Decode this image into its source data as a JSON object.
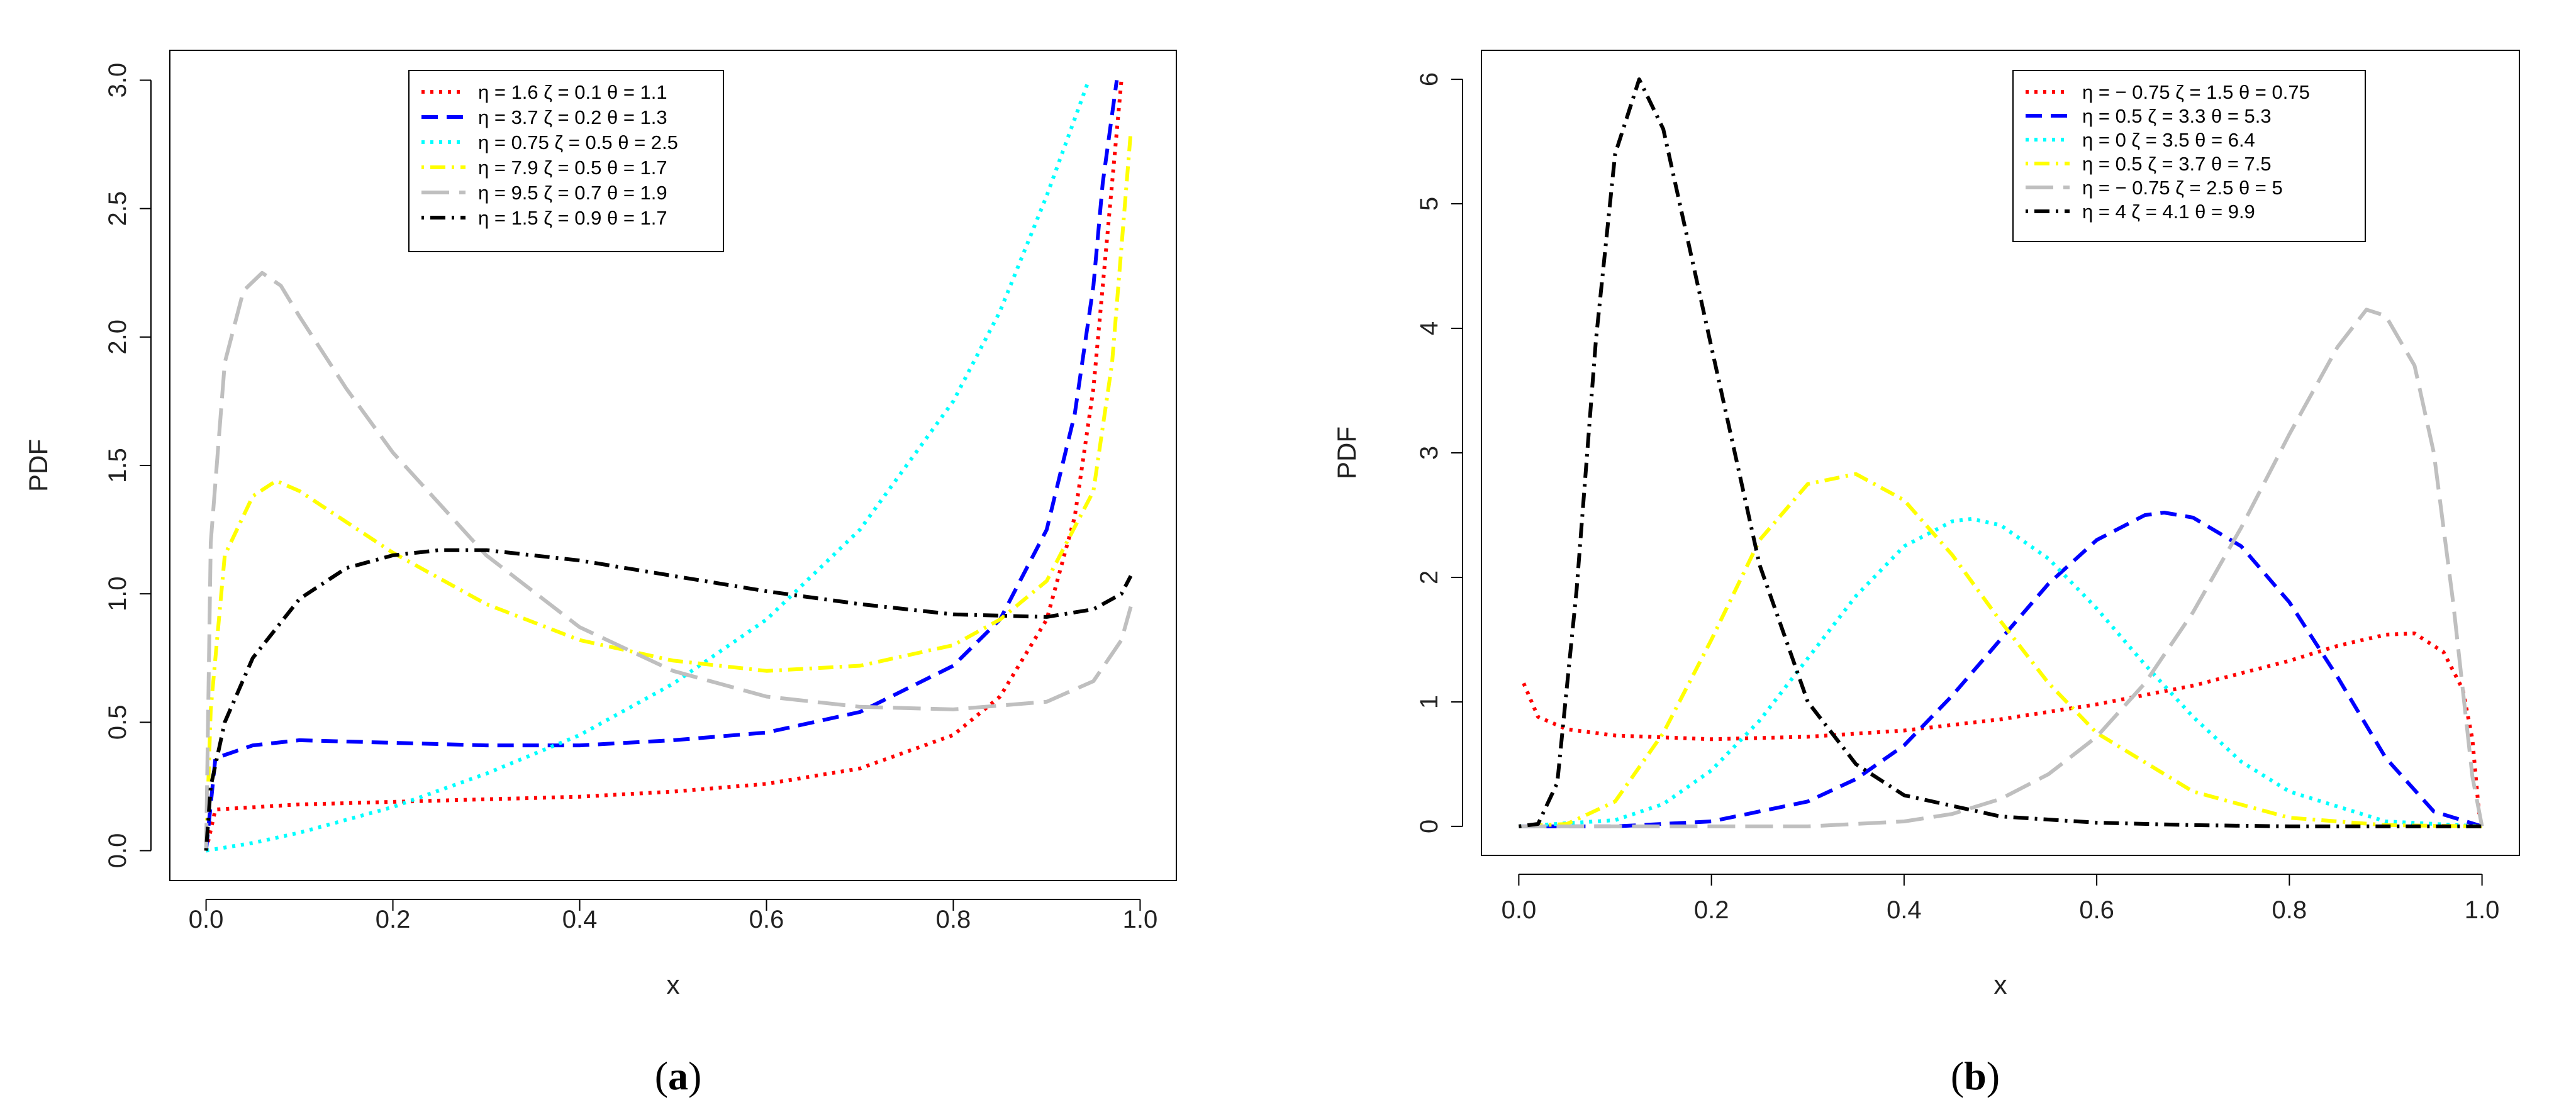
{
  "chart_data": [
    {
      "type": "line",
      "panel_label": "a",
      "xlabel": "x",
      "ylabel": "PDF",
      "xlim": [
        0,
        1
      ],
      "ylim": [
        0,
        3.0
      ],
      "xticks": [
        "0.0",
        "0.2",
        "0.4",
        "0.6",
        "0.8",
        "1.0"
      ],
      "yticks": [
        "0.0",
        "0.5",
        "1.0",
        "1.5",
        "2.0",
        "2.5",
        "3.0"
      ],
      "legend_position": "top-center",
      "series": [
        {
          "name": "η = 1.6  ζ = 0.1  θ = 1.1",
          "color": "#ff0000",
          "dash": "dotted",
          "x": [
            0.0,
            0.01,
            0.1,
            0.2,
            0.3,
            0.4,
            0.5,
            0.6,
            0.7,
            0.8,
            0.85,
            0.9,
            0.93,
            0.95,
            0.97,
            0.98
          ],
          "y": [
            0.0,
            0.16,
            0.18,
            0.19,
            0.2,
            0.21,
            0.23,
            0.26,
            0.32,
            0.45,
            0.6,
            0.9,
            1.3,
            1.8,
            2.6,
            3.0
          ]
        },
        {
          "name": "η = 3.7  ζ = 0.2  θ = 1.3",
          "color": "#0000ff",
          "dash": "dashed",
          "x": [
            0.0,
            0.01,
            0.05,
            0.1,
            0.2,
            0.3,
            0.4,
            0.5,
            0.6,
            0.7,
            0.8,
            0.85,
            0.9,
            0.93,
            0.95,
            0.96,
            0.975
          ],
          "y": [
            0.0,
            0.36,
            0.41,
            0.43,
            0.42,
            0.41,
            0.41,
            0.43,
            0.46,
            0.54,
            0.72,
            0.9,
            1.25,
            1.7,
            2.2,
            2.6,
            3.0
          ]
        },
        {
          "name": "η = 0.75  ζ = 0.5  θ = 2.5",
          "color": "#00ffff",
          "dash": "dotted",
          "x": [
            0.0,
            0.05,
            0.1,
            0.2,
            0.3,
            0.4,
            0.5,
            0.6,
            0.7,
            0.8,
            0.85,
            0.9,
            0.93,
            0.945
          ],
          "y": [
            0.0,
            0.03,
            0.07,
            0.17,
            0.3,
            0.45,
            0.65,
            0.9,
            1.25,
            1.75,
            2.1,
            2.55,
            2.85,
            3.0
          ]
        },
        {
          "name": "η = 7.9  ζ = 0.5  θ = 1.7",
          "color": "#ffff00",
          "dash": "dashdot",
          "x": [
            0.0,
            0.005,
            0.02,
            0.05,
            0.075,
            0.1,
            0.2,
            0.3,
            0.4,
            0.5,
            0.6,
            0.7,
            0.8,
            0.85,
            0.9,
            0.95,
            0.97,
            0.99
          ],
          "y": [
            0.0,
            0.55,
            1.15,
            1.38,
            1.44,
            1.4,
            1.16,
            0.96,
            0.82,
            0.74,
            0.7,
            0.72,
            0.8,
            0.9,
            1.05,
            1.4,
            1.9,
            2.8
          ]
        },
        {
          "name": "η = 9.5  ζ = 0.7  θ = 1.9",
          "color": "#bfbfbf",
          "dash": "longdash",
          "x": [
            0.0,
            0.005,
            0.02,
            0.04,
            0.06,
            0.08,
            0.1,
            0.15,
            0.2,
            0.3,
            0.4,
            0.5,
            0.6,
            0.7,
            0.8,
            0.9,
            0.95,
            0.98,
            0.99
          ],
          "y": [
            0.0,
            1.2,
            1.9,
            2.18,
            2.25,
            2.2,
            2.08,
            1.8,
            1.55,
            1.15,
            0.87,
            0.7,
            0.6,
            0.56,
            0.55,
            0.58,
            0.66,
            0.82,
            0.95
          ]
        },
        {
          "name": "η = 1.5  ζ = 0.9  θ = 1.7",
          "color": "#000000",
          "dash": "dashdot",
          "x": [
            0.0,
            0.005,
            0.02,
            0.05,
            0.1,
            0.15,
            0.2,
            0.25,
            0.3,
            0.4,
            0.5,
            0.6,
            0.7,
            0.8,
            0.9,
            0.95,
            0.98,
            0.99
          ],
          "y": [
            0.0,
            0.25,
            0.5,
            0.75,
            0.98,
            1.1,
            1.15,
            1.17,
            1.17,
            1.13,
            1.07,
            1.01,
            0.96,
            0.92,
            0.91,
            0.94,
            1.0,
            1.07
          ]
        }
      ]
    },
    {
      "type": "line",
      "panel_label": "b",
      "xlabel": "x",
      "ylabel": "PDF",
      "xlim": [
        0,
        1
      ],
      "ylim": [
        0,
        6
      ],
      "xticks": [
        "0.0",
        "0.2",
        "0.4",
        "0.6",
        "0.8",
        "1.0"
      ],
      "yticks": [
        "0",
        "1",
        "2",
        "3",
        "4",
        "5",
        "6"
      ],
      "legend_position": "top-right",
      "series": [
        {
          "name": "η = − 0.75  ζ = 1.5  θ = 0.75",
          "color": "#ff0000",
          "dash": "dotted",
          "x": [
            0.005,
            0.02,
            0.05,
            0.1,
            0.2,
            0.3,
            0.4,
            0.5,
            0.6,
            0.7,
            0.8,
            0.85,
            0.9,
            0.93,
            0.96,
            0.98,
            0.99,
            0.997
          ],
          "y": [
            1.15,
            0.88,
            0.78,
            0.73,
            0.7,
            0.72,
            0.77,
            0.86,
            0.98,
            1.13,
            1.33,
            1.45,
            1.54,
            1.55,
            1.4,
            1.1,
            0.7,
            0.1
          ]
        },
        {
          "name": "η = 0.5  ζ = 3.3  θ = 5.3",
          "color": "#0000ff",
          "dash": "dashed",
          "x": [
            0.0,
            0.1,
            0.2,
            0.3,
            0.35,
            0.4,
            0.45,
            0.5,
            0.55,
            0.6,
            0.65,
            0.67,
            0.7,
            0.75,
            0.8,
            0.85,
            0.9,
            0.95,
            1.0
          ],
          "y": [
            0.0,
            0.0,
            0.04,
            0.2,
            0.38,
            0.65,
            1.05,
            1.5,
            1.95,
            2.3,
            2.5,
            2.52,
            2.48,
            2.25,
            1.8,
            1.2,
            0.55,
            0.12,
            0.0
          ]
        },
        {
          "name": "η = 0  ζ = 3.5  θ = 6.4",
          "color": "#00ffff",
          "dash": "dotted",
          "x": [
            0.0,
            0.1,
            0.15,
            0.2,
            0.25,
            0.3,
            0.35,
            0.4,
            0.45,
            0.47,
            0.5,
            0.55,
            0.6,
            0.65,
            0.7,
            0.75,
            0.8,
            0.9,
            1.0
          ],
          "y": [
            0.0,
            0.05,
            0.18,
            0.45,
            0.85,
            1.35,
            1.85,
            2.25,
            2.45,
            2.47,
            2.42,
            2.15,
            1.75,
            1.3,
            0.88,
            0.52,
            0.28,
            0.04,
            0.0
          ]
        },
        {
          "name": "η = 0.5  ζ = 3.7  θ = 7.5",
          "color": "#ffff00",
          "dash": "dashdot",
          "x": [
            0.0,
            0.05,
            0.1,
            0.15,
            0.2,
            0.25,
            0.3,
            0.35,
            0.4,
            0.45,
            0.5,
            0.55,
            0.6,
            0.7,
            0.8,
            0.9,
            1.0
          ],
          "y": [
            0.0,
            0.02,
            0.2,
            0.75,
            1.5,
            2.3,
            2.75,
            2.83,
            2.62,
            2.18,
            1.65,
            1.15,
            0.75,
            0.28,
            0.07,
            0.01,
            0.0
          ]
        },
        {
          "name": "η = − 0.75  ζ = 2.5  θ = 5",
          "color": "#bfbfbf",
          "dash": "longdash",
          "x": [
            0.0,
            0.3,
            0.4,
            0.45,
            0.5,
            0.55,
            0.6,
            0.65,
            0.7,
            0.75,
            0.8,
            0.85,
            0.88,
            0.9,
            0.93,
            0.95,
            0.97,
            0.99,
            1.0
          ],
          "y": [
            0.0,
            0.0,
            0.04,
            0.1,
            0.22,
            0.42,
            0.72,
            1.15,
            1.72,
            2.4,
            3.15,
            3.85,
            4.15,
            4.1,
            3.7,
            3.0,
            1.8,
            0.4,
            0.0
          ]
        },
        {
          "name": "η = 4  ζ = 4.1  θ = 9.9",
          "color": "#000000",
          "dash": "dashdot",
          "x": [
            0.0,
            0.02,
            0.04,
            0.06,
            0.08,
            0.1,
            0.125,
            0.15,
            0.2,
            0.25,
            0.3,
            0.35,
            0.4,
            0.5,
            0.6,
            0.7,
            0.8,
            1.0
          ],
          "y": [
            0.0,
            0.02,
            0.35,
            1.9,
            3.9,
            5.4,
            6.0,
            5.6,
            3.85,
            2.1,
            1.0,
            0.5,
            0.25,
            0.08,
            0.03,
            0.01,
            0.0,
            0.0
          ]
        }
      ]
    }
  ]
}
